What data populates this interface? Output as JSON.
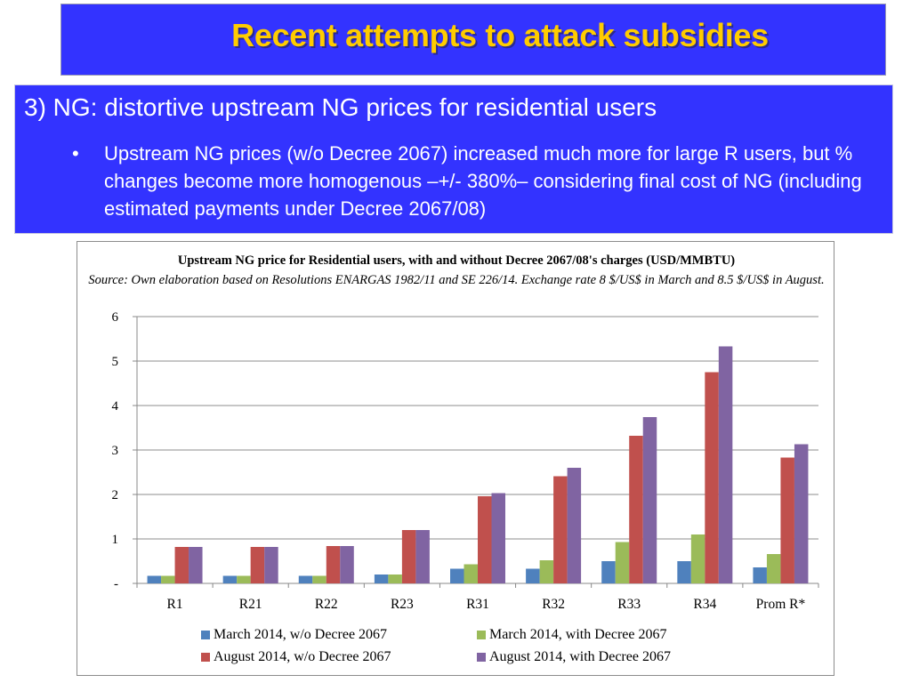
{
  "slide": {
    "title": "Recent attempts to attack subsidies",
    "heading": "3) NG: distortive upstream NG prices for residential users",
    "bullet": "Upstream NG prices (w/o Decree 2067) increased much more for large R users, but % changes become more homogenous –+/- 380%– considering final cost of NG (including estimated payments under Decree 2067/08)",
    "bullet_symbol": "•"
  },
  "colors": {
    "title_bg": "#3333ff",
    "title_text": "#ffcc00",
    "body_bg": "#3333ff",
    "body_text": "#ffffff"
  },
  "chart_data": {
    "type": "bar",
    "title": "Upstream NG price for Residential users, with and without Decree 2067/08's charges (USD/MMBTU)",
    "subtitle": "Source: Own elaboration  based on Resolutions  ENARGAS 1982/11 and SE 226/14.  Exchange rate 8 $/US$ in March and 8.5 $/US$ in August.",
    "categories": [
      "R1",
      "R21",
      "R22",
      "R23",
      "R31",
      "R32",
      "R33",
      "R34",
      "Prom R*"
    ],
    "ylim": [
      0,
      6
    ],
    "yticks": [
      0,
      1,
      2,
      3,
      4,
      5,
      6
    ],
    "ytick_labels": [
      "-",
      "1",
      "2",
      "3",
      "4",
      "5",
      "6"
    ],
    "grid": true,
    "legend_position": "bottom",
    "series": [
      {
        "name": "March 2014, w/o Decree 2067",
        "color": "#4f81bd",
        "values": [
          0.17,
          0.17,
          0.17,
          0.2,
          0.33,
          0.33,
          0.5,
          0.5,
          0.36
        ]
      },
      {
        "name": "March 2014, with Decree 2067",
        "color": "#9bbb59",
        "values": [
          0.17,
          0.17,
          0.17,
          0.2,
          0.43,
          0.52,
          0.93,
          1.1,
          0.66
        ]
      },
      {
        "name": "August 2014, w/o Decree 2067",
        "color": "#c0504d",
        "values": [
          0.82,
          0.82,
          0.84,
          1.2,
          1.96,
          2.41,
          3.32,
          4.75,
          2.83
        ]
      },
      {
        "name": "August 2014, with Decree 2067",
        "color": "#8064a2",
        "values": [
          0.82,
          0.82,
          0.84,
          1.2,
          2.03,
          2.6,
          3.74,
          5.33,
          3.13
        ]
      }
    ]
  }
}
